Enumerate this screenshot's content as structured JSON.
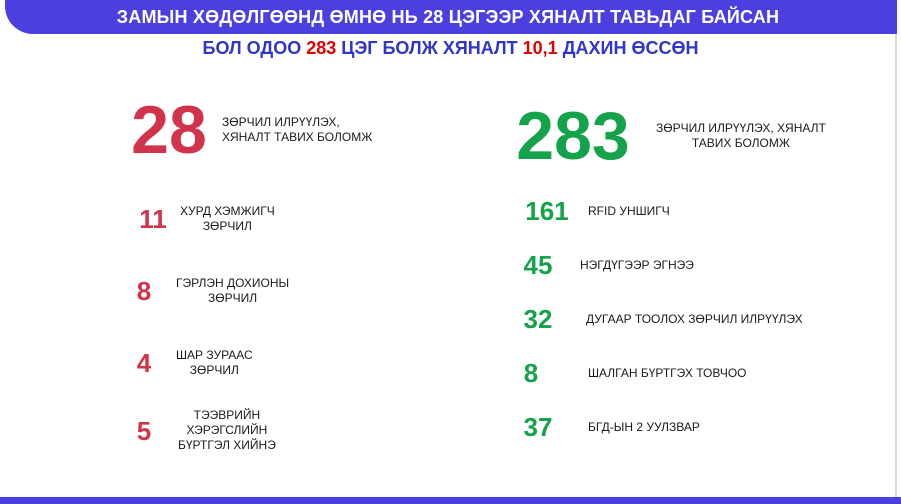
{
  "header": {
    "title": "ЗАМЫН ХӨДӨЛГӨӨНД ӨМНӨ НЬ 28 ЦЭГЭЭР ХЯНАЛТ ТАВЬДАГ БАЙСАН",
    "subtitle_part1": "БОЛ ОДОО ",
    "subtitle_hl1": "283",
    "subtitle_part2": " ЦЭГ БОЛЖ ХЯНАЛТ ",
    "subtitle_hl2": "10,1",
    "subtitle_part3": " ДАХИН ӨССӨН"
  },
  "colors": {
    "banner": "#4b3fe0",
    "subtitle": "#2f36c8",
    "before": "#d1344a",
    "after": "#14a34a"
  },
  "before": {
    "total": {
      "value": "28",
      "label": "ЗӨРЧИЛ ИЛРҮҮЛЭХ,\nХЯНАЛТ ТАВИХ БОЛОМЖ"
    },
    "items": [
      {
        "value": "11",
        "label": "ХУРД ХЭМЖИГЧ\nЗӨРЧИЛ"
      },
      {
        "value": "8",
        "label": "ГЭРЛЭН ДОХИОНЫ\nЗӨРЧИЛ"
      },
      {
        "value": "4",
        "label": "ШАР ЗУРААС\nЗӨРЧИЛ"
      },
      {
        "value": "5",
        "label": "ТЭЭВРИЙН\nХЭРЭГСЛИЙН\nБҮРТГЭЛ ХИЙНЭ"
      }
    ]
  },
  "after": {
    "total": {
      "value": "283",
      "label": "ЗӨРЧИЛ ИЛРҮҮЛЭХ, ХЯНАЛТ\nТАВИХ БОЛОМЖ"
    },
    "items": [
      {
        "value": "161",
        "label": "RFID УНШИГЧ"
      },
      {
        "value": "45",
        "label": "НЭГДҮГЭЭР ЭГНЭЭ"
      },
      {
        "value": "32",
        "label": "ДУГААР ТООЛОХ ЗӨРЧИЛ ИЛРҮҮЛЭХ"
      },
      {
        "value": "8",
        "label": "ШАЛГАН БҮРТГЭХ ТОВЧОО"
      },
      {
        "value": "37",
        "label": "БГД-ЫН 2 УУЛЗВАР"
      }
    ]
  }
}
